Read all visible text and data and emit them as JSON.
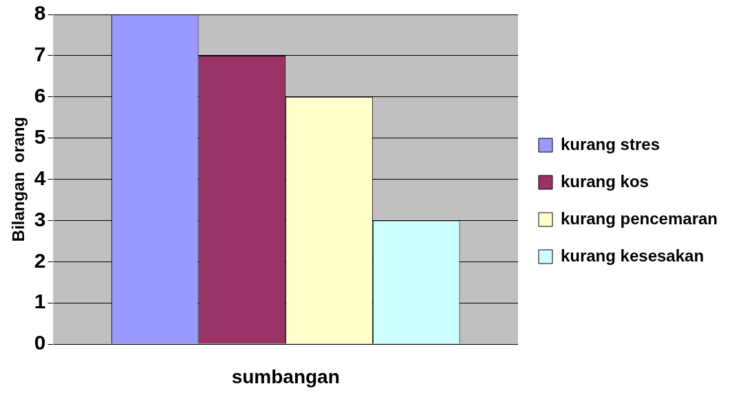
{
  "chart_data": {
    "type": "bar",
    "ylabel": "Bilangan  orang",
    "xlabel": "sumbangan",
    "categories": [
      null
    ],
    "series": [
      {
        "name": "kurang stres",
        "color": "#9999ff",
        "values": [
          8
        ]
      },
      {
        "name": "kurang kos",
        "color": "#993366",
        "values": [
          7
        ]
      },
      {
        "name": "kurang pencemaran",
        "color": "#ffffcc",
        "values": [
          6
        ]
      },
      {
        "name": "kurang kesesakan",
        "color": "#ccffff",
        "values": [
          3
        ]
      }
    ],
    "ylim": [
      0,
      8
    ],
    "yticks": [
      0,
      1,
      2,
      3,
      4,
      5,
      6,
      7,
      8
    ],
    "grid": "y",
    "legend": "right"
  }
}
